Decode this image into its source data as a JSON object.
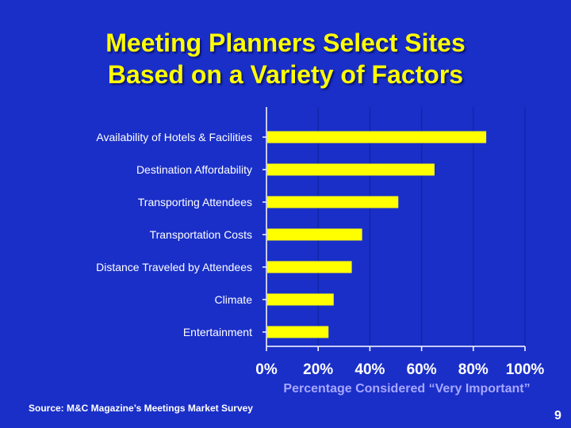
{
  "slide": {
    "title_line1": "Meeting Planners Select Sites",
    "title_line2": "Based on a Variety of Factors",
    "source": "Source: M&C Magazine’s Meetings Market Survey",
    "page_number": "9"
  },
  "colors": {
    "background": "#1a2fc8",
    "title": "#ffff00",
    "bar": "#ffff00",
    "axis_title": "#a7a7ff"
  },
  "chart_data": {
    "type": "bar",
    "orientation": "horizontal",
    "categories": [
      "Availability of Hotels & Facilities",
      "Destination Affordability",
      "Transporting Attendees",
      "Transportation Costs",
      "Distance Traveled by Attendees",
      "Climate",
      "Entertainment"
    ],
    "values": [
      85,
      65,
      51,
      37,
      33,
      26,
      24
    ],
    "xlabel": "Percentage Considered “Very Important”",
    "xlim": [
      0,
      100
    ],
    "xticks": [
      "0%",
      "20%",
      "40%",
      "60%",
      "80%",
      "100%"
    ],
    "grid": true
  }
}
